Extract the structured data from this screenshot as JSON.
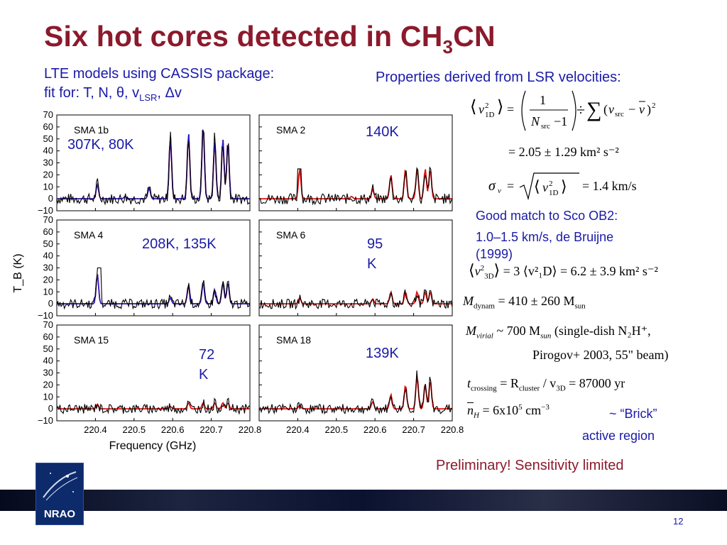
{
  "slide": {
    "title_main": "Six hot cores detected in CH",
    "title_sub": "3",
    "title_end": "CN",
    "page_number": "12",
    "logo_text": "NRAO"
  },
  "left_text": {
    "line1": "LTE models using CASSIS package:",
    "line2_prefix": "fit for:  T, N, θ, v",
    "line2_sub": "LSR",
    "line2_suffix": ", Δv"
  },
  "right_header": "Properties derived from LSR velocities:",
  "annotations": {
    "good_match_1": "Good match to Sco OB2:",
    "good_match_2": "1.0–1.5 km/s, de Bruijne",
    "good_match_3": "(1999)",
    "brick_1": "~ “Brick”",
    "brick_2": "active region",
    "preliminary": "Preliminary!  Sensitivity limited"
  },
  "equations": {
    "eq1_result": "= 2.05 ± 1.29 km² s⁻²",
    "eq2_result": "= 1.4 km/s",
    "eq3_text": "= 3 ⟨v²₁D⟩ = 6.2 ± 3.9 km² s⁻²",
    "eq4_text": "= 410 ± 260 M",
    "eq5_text": "~ 700 M",
    "eq5_note_1": "(single-dish N₂H⁺,",
    "eq5_note_2": "Pirogov+ 2003, 55\" beam)",
    "eq6_text": "= R",
    "eq6_rest": " / v",
    "eq6_end": " = 87000 yr",
    "eq7_text": "= 6x10",
    "eq7_exp": "5",
    "eq7_units": " cm",
    "eq7_units_exp": "−3"
  },
  "panels": [
    {
      "name": "SMA 1b",
      "fit_label": "307K, 80K"
    },
    {
      "name": "SMA 2",
      "fit_label": "140K"
    },
    {
      "name": "SMA 4",
      "fit_label": "208K, 135K"
    },
    {
      "name": "SMA 6",
      "fit_label_1": "95",
      "fit_label_2": "K"
    },
    {
      "name": "SMA 15",
      "fit_label_1": "72",
      "fit_label_2": "K"
    },
    {
      "name": "SMA 18",
      "fit_label": "139K"
    }
  ],
  "chart_data": {
    "type": "line",
    "xlabel": "Frequency (GHz)",
    "ylabel": "T_B (K)",
    "ylim": [
      -10,
      70
    ],
    "xlim": [
      220.3,
      220.8
    ],
    "y_ticks": [
      "70",
      "60",
      "50",
      "40",
      "30",
      "20",
      "10",
      "0",
      "−10"
    ],
    "x_ticks": [
      "220.4",
      "220.5",
      "220.6",
      "220.7",
      "220.8"
    ],
    "line_positions_ghz": [
      220.405,
      220.477,
      220.539,
      220.594,
      220.641,
      220.679,
      220.709,
      220.73,
      220.743
    ],
    "series_colors": {
      "observed": "#000000",
      "model_red": "#e01010",
      "model_blue": "#2020d0"
    },
    "panel_peak_heights_k": [
      [
        12,
        2,
        9,
        52,
        55,
        62,
        48,
        50,
        48
      ],
      [
        25,
        0,
        2,
        8,
        20,
        25,
        25,
        25,
        25
      ],
      [
        25,
        0,
        0,
        5,
        16,
        18,
        12,
        18,
        18
      ],
      [
        5,
        0,
        0,
        4,
        10,
        10,
        10,
        10,
        10
      ],
      [
        4,
        0,
        0,
        2,
        5,
        5,
        5,
        5,
        5
      ],
      [
        3,
        0,
        0,
        6,
        12,
        20,
        28,
        20,
        24
      ]
    ]
  }
}
